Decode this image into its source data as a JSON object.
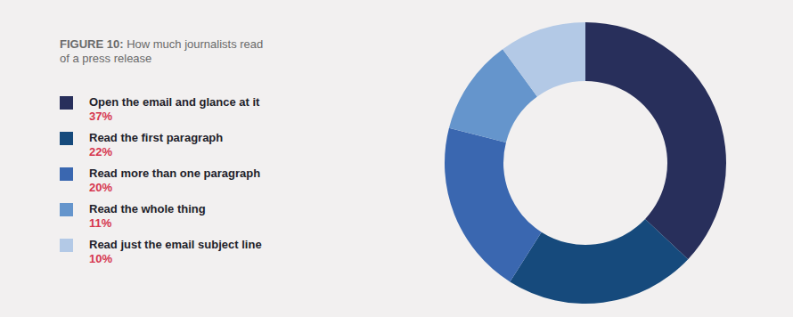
{
  "chart_data": {
    "type": "pie",
    "title": "FIGURE 10: How much journalists read of a press release",
    "categories": [
      "Open the email and glance at it",
      "Read the first paragraph",
      "Read more than one paragraph",
      "Read the whole thing",
      "Read just the email subject line"
    ],
    "values": [
      37,
      22,
      20,
      11,
      10
    ],
    "value_labels": [
      "37%",
      "22%",
      "20%",
      "11%",
      "10%"
    ],
    "colors": [
      "#282f5b",
      "#164a7c",
      "#3a67b0",
      "#6595cc",
      "#b3c9e6"
    ],
    "legend": "left"
  }
}
